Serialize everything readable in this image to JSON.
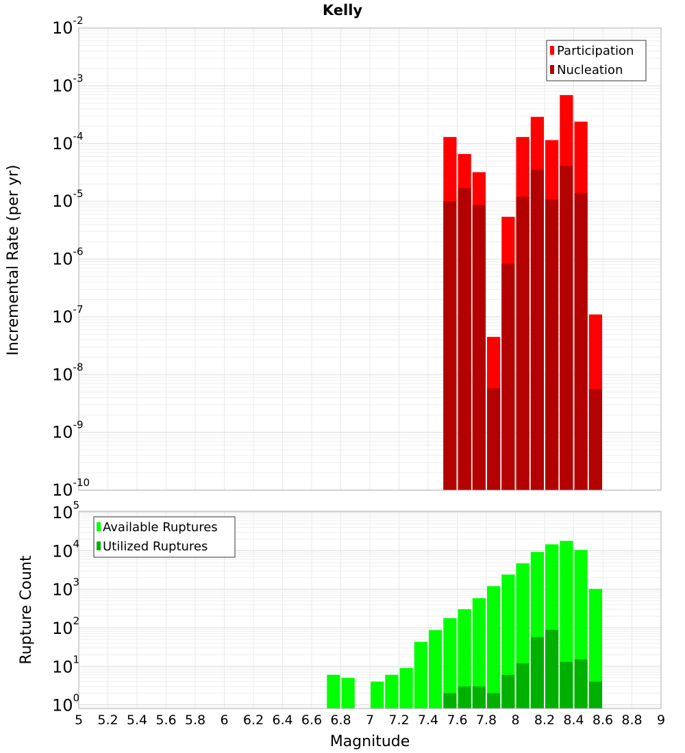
{
  "chart_data": [
    {
      "type": "bar",
      "title": "Kelly",
      "xlabel": "",
      "ylabel": "Incremental Rate (per yr)",
      "yscale": "log",
      "xlim": [
        5,
        9
      ],
      "ylim": [
        1e-10,
        0.01
      ],
      "ytick_exponents": [
        "-10",
        "-9",
        "-8",
        "-7",
        "-6",
        "-5",
        "-4",
        "-3",
        "-2"
      ],
      "bin_width": 0.1,
      "x": [
        7.55,
        7.65,
        7.75,
        7.85,
        7.95,
        8.05,
        8.15,
        8.25,
        8.35,
        8.45,
        8.55
      ],
      "legend_position": "top-right",
      "series": [
        {
          "name": "Participation",
          "color": "#ff0000",
          "values": [
            0.00013,
            6.6e-05,
            3.2e-05,
            4.5e-08,
            5.4e-06,
            0.00013,
            0.00029,
            0.000115,
            0.00069,
            0.00024,
            1.1e-07
          ]
        },
        {
          "name": "Nucleation",
          "color": "#b30000",
          "values": [
            1e-05,
            1.7e-05,
            8.6e-06,
            5.8e-09,
            8.3e-07,
            1.2e-05,
            3.5e-05,
            1.07e-05,
            4.1e-05,
            1.4e-05,
            5.6e-09
          ]
        }
      ]
    },
    {
      "type": "bar",
      "title": "",
      "xlabel": "Magnitude",
      "ylabel": "Rupture Count",
      "yscale": "log",
      "xlim": [
        5,
        9
      ],
      "ylim": [
        0.8,
        105000
      ],
      "ytick_exponents": [
        "0",
        "1",
        "2",
        "3",
        "4",
        "5"
      ],
      "xticks": [
        "5",
        "5.2",
        "5.4",
        "5.6",
        "5.8",
        "6",
        "6.2",
        "6.4",
        "6.6",
        "6.8",
        "7",
        "7.2",
        "7.4",
        "7.6",
        "7.8",
        "8",
        "8.2",
        "8.4",
        "8.6",
        "8.8",
        "9"
      ],
      "bin_width": 0.1,
      "x": [
        6.75,
        6.85,
        6.95,
        7.05,
        7.15,
        7.25,
        7.35,
        7.45,
        7.55,
        7.65,
        7.75,
        7.85,
        7.95,
        8.05,
        8.15,
        8.25,
        8.35,
        8.45,
        8.55
      ],
      "legend_position": "top-left",
      "series": [
        {
          "name": "Available Ruptures",
          "color": "#00ff00",
          "values": [
            6,
            5,
            0,
            4,
            6,
            9,
            43,
            87,
            177,
            303,
            585,
            1200,
            2400,
            4700,
            9300,
            14600,
            18000,
            10500,
            1020
          ]
        },
        {
          "name": "Utilized Ruptures",
          "color": "#00b000",
          "values": [
            0,
            0,
            0,
            0,
            0,
            0,
            0,
            0,
            2,
            3,
            3,
            2,
            6,
            12,
            57,
            88,
            13,
            15,
            4
          ]
        }
      ]
    }
  ],
  "tick_base": "10"
}
